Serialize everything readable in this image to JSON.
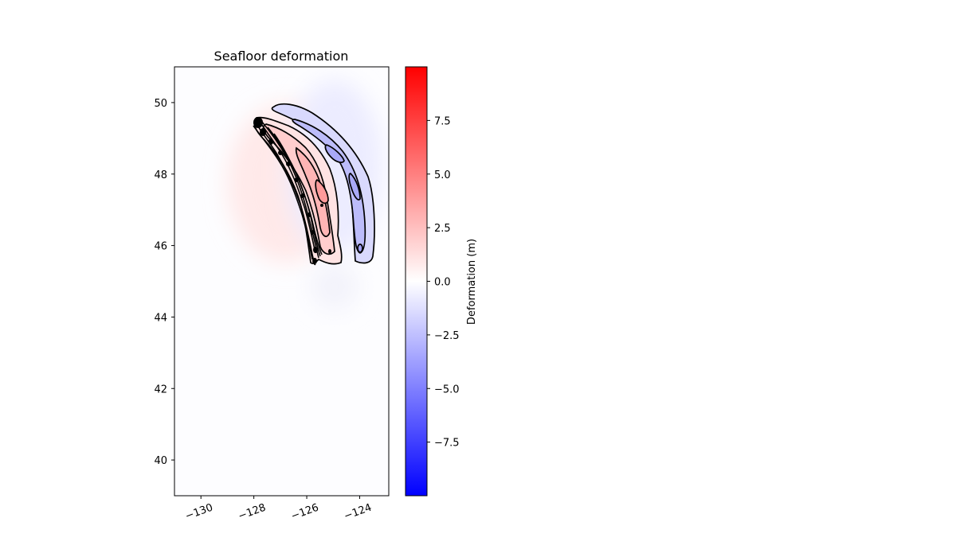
{
  "chart_data": {
    "type": "heatmap",
    "title": "Seafloor deformation",
    "xlabel": "",
    "ylabel": "",
    "xlim": [
      -131,
      -122.9
    ],
    "ylim": [
      39,
      51
    ],
    "x_ticks": [
      -130,
      -128,
      -126,
      -124
    ],
    "x_tick_labels": [
      "−130",
      "−128",
      "−126",
      "−124"
    ],
    "y_ticks": [
      40,
      42,
      44,
      46,
      48,
      50
    ],
    "y_tick_labels": [
      "40",
      "42",
      "44",
      "46",
      "48",
      "50"
    ],
    "grid": false,
    "colormap": "bwr",
    "colorbar": {
      "label": "Deformation (m)",
      "range": [
        -10,
        10
      ],
      "ticks": [
        -7.5,
        -5.0,
        -2.5,
        0.0,
        2.5,
        5.0,
        7.5
      ],
      "tick_labels": [
        "−7.5",
        "−5.0",
        "−2.5",
        "0.0",
        "2.5",
        "5.0",
        "7.5"
      ],
      "colors": {
        "low": "#0000ff",
        "mid": "#ffffff",
        "high": "#ff0000"
      }
    },
    "uplift_zone": {
      "description_values": "positive deformation band along trench",
      "centerline": [
        [
          -127.5,
          49.3
        ],
        [
          -126.9,
          48.6
        ],
        [
          -126.3,
          47.8
        ],
        [
          -125.9,
          47.0
        ],
        [
          -125.6,
          46.2
        ],
        [
          -125.4,
          45.6
        ]
      ],
      "peak_value": 2.5
    },
    "subsidence_zone": {
      "centerline": [
        [
          -126.0,
          49.7
        ],
        [
          -125.0,
          49.0
        ],
        [
          -124.2,
          48.0
        ],
        [
          -123.9,
          47.0
        ],
        [
          -123.8,
          46.0
        ],
        [
          -123.7,
          45.6
        ]
      ],
      "min_value": -2.0
    },
    "contour_levels": [
      -2.0,
      -1.0,
      -0.5,
      0.5,
      1.0,
      1.5,
      2.0,
      2.5
    ]
  }
}
